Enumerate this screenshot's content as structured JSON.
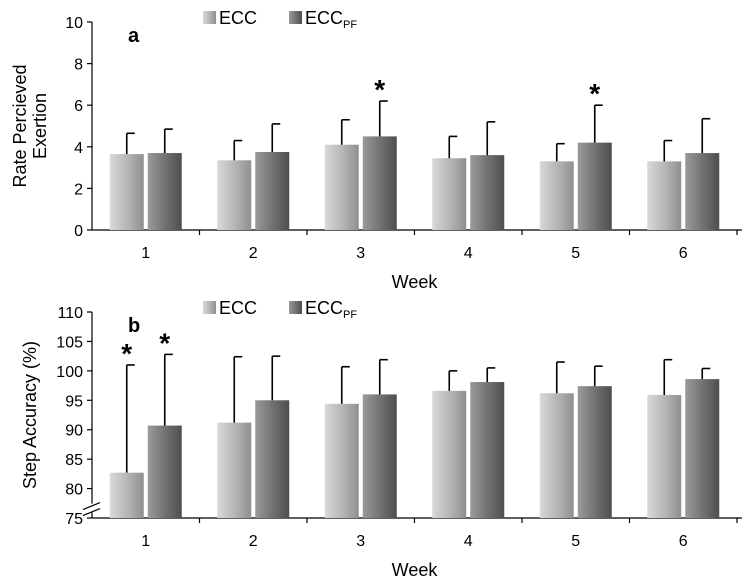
{
  "chart_data": [
    {
      "type": "bar",
      "panel_label": "a",
      "categories": [
        "1",
        "2",
        "3",
        "4",
        "5",
        "6"
      ],
      "series": [
        {
          "name": "ECC",
          "legend_main": "ECC",
          "legend_sub": "",
          "values": [
            3.65,
            3.35,
            4.1,
            3.45,
            3.3,
            3.3
          ],
          "error_upper": [
            1.0,
            0.95,
            1.2,
            1.05,
            0.85,
            1.0
          ]
        },
        {
          "name": "ECCPF",
          "legend_main": "ECC",
          "legend_sub": "PF",
          "values": [
            3.7,
            3.75,
            4.5,
            3.6,
            4.2,
            3.7
          ],
          "error_upper": [
            1.15,
            1.35,
            1.7,
            1.6,
            1.8,
            1.65
          ]
        }
      ],
      "significance": [
        {
          "category": "3",
          "series": "ECCPF",
          "symbol": "*"
        },
        {
          "category": "5",
          "series": "ECCPF",
          "symbol": "*"
        }
      ],
      "xlabel": "Week",
      "ylabel_lines": [
        "Rate Percieved",
        "Exertion"
      ],
      "ylim": [
        0,
        10
      ],
      "yticks": [
        0,
        2,
        4,
        6,
        8,
        10
      ],
      "grid": false,
      "legend_position": "top-left"
    },
    {
      "type": "bar",
      "panel_label": "b",
      "categories": [
        "1",
        "2",
        "3",
        "4",
        "5",
        "6"
      ],
      "series": [
        {
          "name": "ECC",
          "legend_main": "ECC",
          "legend_sub": "",
          "values": [
            82.7,
            91.2,
            94.4,
            96.6,
            96.2,
            95.9
          ],
          "error_upper": [
            18.3,
            11.2,
            6.3,
            3.4,
            5.3,
            6.0
          ]
        },
        {
          "name": "ECCPF",
          "legend_main": "ECC",
          "legend_sub": "PF",
          "values": [
            90.7,
            95.0,
            96.0,
            98.1,
            97.4,
            98.6
          ],
          "error_upper": [
            12.1,
            7.5,
            5.9,
            2.4,
            3.4,
            1.8
          ]
        }
      ],
      "significance": [
        {
          "category": "1",
          "series": "ECC",
          "symbol": "*"
        },
        {
          "category": "1",
          "series": "ECCPF",
          "symbol": "*"
        }
      ],
      "xlabel": "Week",
      "ylabel_lines": [
        "Step Accuracy (%)"
      ],
      "ylim": [
        75,
        110
      ],
      "yticks": [
        75,
        80,
        85,
        90,
        95,
        100,
        105,
        110
      ],
      "axis_break": true,
      "grid": false,
      "legend_position": "top-left"
    }
  ],
  "colors": {
    "ecc_light": "#d9d9d9",
    "ecc_mid": "#b3b3b3",
    "ecc_dark": "#8f8f8f",
    "eccpf_light": "#9a9a9a",
    "eccpf_mid": "#6f6f6f",
    "eccpf_dark": "#4e4e4e",
    "axis": "#000000"
  }
}
